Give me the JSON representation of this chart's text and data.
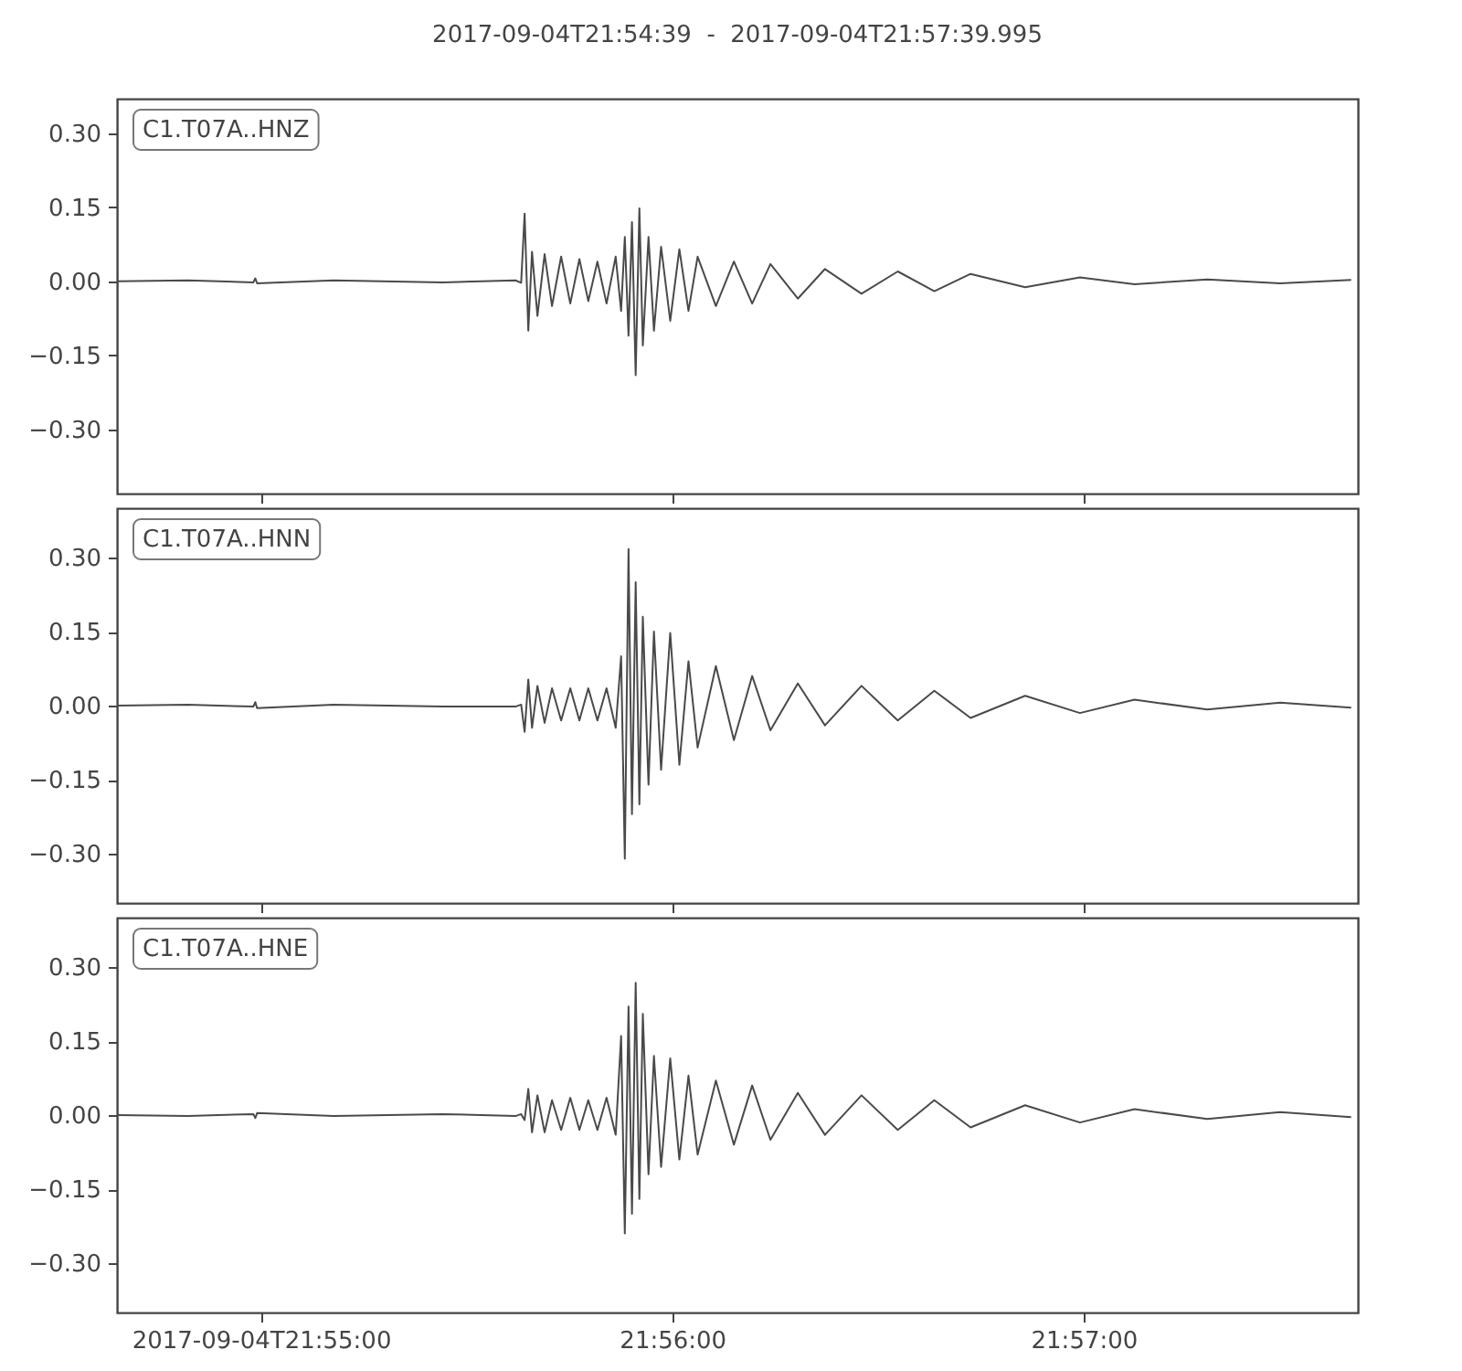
{
  "chart_data": [
    {
      "type": "line",
      "title": "2017-09-04T21:54:39  -  2017-09-04T21:57:39.995",
      "annotations": [
        "C1.T07A..HNZ"
      ],
      "tick_labels": "y",
      "x": [
        21.910833,
        21.91371,
        21.91636,
        21.91644,
        21.91651,
        21.91961,
        21.92403,
        21.92698,
        21.92721,
        21.92735,
        21.9275,
        21.92765,
        21.92787,
        21.92816,
        21.92846,
        21.92883,
        21.9292,
        21.92957,
        21.92993,
        21.9303,
        21.93067,
        21.93104,
        21.93126,
        21.93141,
        21.93156,
        21.9317,
        21.93185,
        21.932,
        21.93214,
        21.93237,
        21.93259,
        21.93288,
        21.93325,
        21.93362,
        21.93399,
        21.93436,
        21.9351,
        21.93583,
        21.93657,
        21.93731,
        21.93842,
        21.93952,
        21.941,
        21.94247,
        21.94395,
        21.94542,
        21.94763,
        21.94985,
        21.95206,
        21.95501,
        21.95796,
        21.96084
      ],
      "series": [
        {
          "color": "#4a4a4a",
          "values": [
            0,
            0.002,
            -0.002,
            0.006,
            -0.004,
            0.002,
            -0.002,
            0.002,
            -0.003,
            0.137,
            -0.1,
            0.06,
            -0.07,
            0.055,
            -0.05,
            0.05,
            -0.045,
            0.045,
            -0.04,
            0.04,
            -0.045,
            0.05,
            -0.06,
            0.09,
            -0.11,
            0.12,
            -0.19,
            0.148,
            -0.13,
            0.09,
            -0.1,
            0.07,
            -0.08,
            0.065,
            -0.06,
            0.05,
            -0.05,
            0.04,
            -0.045,
            0.035,
            -0.035,
            0.025,
            -0.025,
            0.02,
            -0.02,
            0.015,
            -0.012,
            0.008,
            -0.006,
            0.004,
            -0.004,
            0.003
          ]
        }
      ],
      "xlim": [
        21.910833,
        21.96111
      ],
      "xticks": [
        {
          "value": 21.916667,
          "label": null
        },
        {
          "value": 21.933333,
          "label": null
        },
        {
          "value": 21.95,
          "label": null
        }
      ],
      "ylim": [
        -0.43,
        0.37
      ],
      "yticks": [
        {
          "value": -0.3,
          "label": "−0.30"
        },
        {
          "value": -0.15,
          "label": "−0.15"
        },
        {
          "value": 0,
          "label": "0.00"
        },
        {
          "value": 0.15,
          "label": "0.15"
        },
        {
          "value": 0.3,
          "label": "0.30"
        }
      ]
    },
    {
      "type": "line",
      "annotations": [
        "C1.T07A..HNN"
      ],
      "tick_labels": "y",
      "x": [
        21.910833,
        21.91371,
        21.91636,
        21.91644,
        21.91651,
        21.91961,
        21.92403,
        21.92698,
        21.92721,
        21.92735,
        21.9275,
        21.92765,
        21.92787,
        21.92816,
        21.92846,
        21.92883,
        21.9292,
        21.92957,
        21.92993,
        21.9303,
        21.93067,
        21.93104,
        21.93126,
        21.93141,
        21.93156,
        21.9317,
        21.93185,
        21.932,
        21.93214,
        21.93237,
        21.93259,
        21.93288,
        21.93325,
        21.93362,
        21.93399,
        21.93436,
        21.9351,
        21.93583,
        21.93657,
        21.93731,
        21.93842,
        21.93952,
        21.941,
        21.94247,
        21.94395,
        21.94542,
        21.94763,
        21.94985,
        21.95206,
        21.95501,
        21.95796,
        21.96084
      ],
      "series": [
        {
          "color": "#4a4a4a",
          "values": [
            0,
            0.002,
            -0.002,
            0.007,
            -0.005,
            0.002,
            -0.002,
            -0.002,
            0.002,
            -0.053,
            0.053,
            -0.045,
            0.04,
            -0.035,
            0.035,
            -0.03,
            0.035,
            -0.03,
            0.035,
            -0.03,
            0.035,
            -0.045,
            0.1,
            -0.31,
            0.317,
            -0.22,
            0.25,
            -0.2,
            0.18,
            -0.16,
            0.15,
            -0.13,
            0.147,
            -0.12,
            0.09,
            -0.085,
            0.08,
            -0.07,
            0.06,
            -0.05,
            0.045,
            -0.04,
            0.04,
            -0.03,
            0.03,
            -0.025,
            0.02,
            -0.015,
            0.012,
            -0.008,
            0.006,
            -0.004
          ]
        }
      ],
      "xlim": [
        21.910833,
        21.96111
      ],
      "xticks": [
        {
          "value": 21.916667,
          "label": null
        },
        {
          "value": 21.933333,
          "label": null
        },
        {
          "value": 21.95,
          "label": null
        }
      ],
      "ylim": [
        -0.4,
        0.4
      ],
      "yticks": [
        {
          "value": -0.3,
          "label": "−0.30"
        },
        {
          "value": -0.15,
          "label": "−0.15"
        },
        {
          "value": 0,
          "label": "0.00"
        },
        {
          "value": 0.15,
          "label": "0.15"
        },
        {
          "value": 0.3,
          "label": "0.30"
        }
      ]
    },
    {
      "type": "line",
      "annotations": [
        "C1.T07A..HNE"
      ],
      "x": [
        21.910833,
        21.91371,
        21.91636,
        21.91644,
        21.91651,
        21.91961,
        21.92403,
        21.92698,
        21.92721,
        21.92735,
        21.9275,
        21.92765,
        21.92787,
        21.92816,
        21.92846,
        21.92883,
        21.9292,
        21.92957,
        21.92993,
        21.9303,
        21.93067,
        21.93104,
        21.93126,
        21.93141,
        21.93156,
        21.9317,
        21.93185,
        21.932,
        21.93214,
        21.93237,
        21.93259,
        21.93288,
        21.93325,
        21.93362,
        21.93399,
        21.93436,
        21.9351,
        21.93583,
        21.93657,
        21.93731,
        21.93842,
        21.93952,
        21.941,
        21.94247,
        21.94395,
        21.94542,
        21.94763,
        21.94985,
        21.95206,
        21.95501,
        21.95796,
        21.96084
      ],
      "series": [
        {
          "color": "#4a4a4a",
          "values": [
            0,
            -0.002,
            0.002,
            -0.006,
            0.004,
            -0.002,
            0.002,
            -0.002,
            0.002,
            -0.01,
            0.053,
            -0.035,
            0.04,
            -0.035,
            0.03,
            -0.03,
            0.035,
            -0.03,
            0.03,
            -0.03,
            0.035,
            -0.04,
            0.16,
            -0.24,
            0.22,
            -0.2,
            0.268,
            -0.17,
            0.205,
            -0.12,
            0.12,
            -0.105,
            0.115,
            -0.09,
            0.08,
            -0.08,
            0.07,
            -0.06,
            0.06,
            -0.05,
            0.045,
            -0.04,
            0.04,
            -0.03,
            0.03,
            -0.025,
            0.02,
            -0.015,
            0.012,
            -0.008,
            0.006,
            -0.004
          ]
        }
      ],
      "xlim": [
        21.910833,
        21.96111
      ],
      "xticks": [
        {
          "value": 21.916667,
          "label": "2017-09-04T21:55:00"
        },
        {
          "value": 21.933333,
          "label": "21:56:00"
        },
        {
          "value": 21.95,
          "label": "21:57:00"
        }
      ],
      "ylim": [
        -0.4,
        0.4
      ],
      "yticks": [
        {
          "value": -0.3,
          "label": "−0.30"
        },
        {
          "value": -0.15,
          "label": "−0.15"
        },
        {
          "value": 0,
          "label": "0.00"
        },
        {
          "value": 0.15,
          "label": "0.15"
        },
        {
          "value": 0.3,
          "label": "0.30"
        }
      ]
    }
  ]
}
